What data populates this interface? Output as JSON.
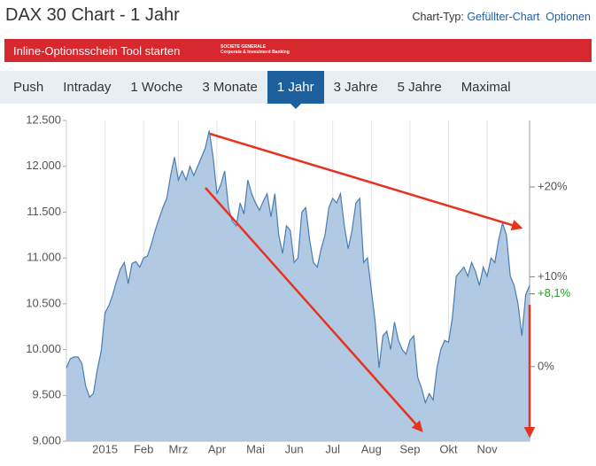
{
  "header": {
    "title": "DAX 30 Chart - 1 Jahr",
    "chart_type_label": "Chart-Typ:",
    "chart_type": "Gefüllter-Chart",
    "options": "Optionen"
  },
  "banner": {
    "text": "Inline-Optionsschein Tool starten",
    "logo_line1": "SOCIETE GENERALE",
    "logo_line2": "Corporate & Investment Banking"
  },
  "tabs": {
    "items": [
      "Push",
      "Intraday",
      "1 Woche",
      "3 Monate",
      "1 Jahr",
      "3 Jahre",
      "5 Jahre",
      "Maximal"
    ],
    "active": 4
  },
  "chart_data": {
    "type": "area",
    "categories": [
      null,
      null,
      null,
      null,
      null,
      null,
      null,
      null,
      null,
      null,
      "2015",
      null,
      null,
      null,
      null,
      null,
      null,
      null,
      null,
      null,
      "Feb",
      null,
      null,
      null,
      null,
      null,
      null,
      null,
      null,
      "Mrz",
      null,
      null,
      null,
      null,
      null,
      null,
      null,
      null,
      null,
      "Apr",
      null,
      null,
      null,
      null,
      null,
      null,
      null,
      null,
      null,
      "Mai",
      null,
      null,
      null,
      null,
      null,
      null,
      null,
      null,
      null,
      "Jun",
      null,
      null,
      null,
      null,
      null,
      null,
      null,
      null,
      null,
      "Jul",
      null,
      null,
      null,
      null,
      null,
      null,
      null,
      null,
      null,
      "Aug",
      null,
      null,
      null,
      null,
      null,
      null,
      null,
      null,
      null,
      "Sep",
      null,
      null,
      null,
      null,
      null,
      null,
      null,
      null,
      null,
      "Okt",
      null,
      null,
      null,
      null,
      null,
      null,
      null,
      null,
      null,
      "Nov",
      null,
      null,
      null,
      null,
      null,
      null,
      null,
      null,
      null,
      null,
      null
    ],
    "series": [
      {
        "name": "DAX 30",
        "color": "#4a7db3",
        "fill": "#a8c3df",
        "values": [
          9800,
          9900,
          9920,
          9920,
          9850,
          9600,
          9480,
          9520,
          9780,
          9980,
          10400,
          10480,
          10600,
          10750,
          10880,
          10950,
          10720,
          10940,
          10960,
          10900,
          11000,
          11020,
          11150,
          11300,
          11430,
          11550,
          11650,
          11900,
          12100,
          11850,
          11950,
          11850,
          12000,
          11900,
          12000,
          12100,
          12200,
          12390,
          12100,
          11700,
          11800,
          11950,
          11550,
          11400,
          11350,
          11600,
          11480,
          11850,
          11700,
          11600,
          11520,
          11620,
          11700,
          11450,
          11700,
          11250,
          11050,
          11350,
          11300,
          10950,
          11000,
          11500,
          11550,
          11200,
          10950,
          10900,
          11100,
          11250,
          11550,
          11650,
          11600,
          11700,
          11350,
          11100,
          11300,
          11600,
          11650,
          10950,
          11000,
          10650,
          10300,
          9800,
          10150,
          10200,
          10000,
          10300,
          10100,
          10000,
          9950,
          10100,
          10150,
          9700,
          9580,
          9420,
          9520,
          9450,
          9800,
          10000,
          10100,
          10080,
          10350,
          10800,
          10850,
          10900,
          10800,
          10950,
          10850,
          10700,
          10900,
          10800,
          11000,
          10950,
          11200,
          11380,
          11250,
          10800,
          10700,
          10500,
          10150,
          10600,
          10700
        ]
      }
    ],
    "ylim": [
      9000,
      12500
    ],
    "yticks": [
      {
        "value": 9000,
        "label": "9.000"
      },
      {
        "value": 9500,
        "label": "9.500"
      },
      {
        "value": 10000,
        "label": "10.000"
      },
      {
        "value": 10500,
        "label": "10.500"
      },
      {
        "value": 11000,
        "label": "11.000"
      },
      {
        "value": 11500,
        "label": "11.500"
      },
      {
        "value": 12000,
        "label": "12.000"
      },
      {
        "value": 12500,
        "label": "12.500"
      }
    ],
    "y2lim": [
      -8.3,
      27.4
    ],
    "y2ticks": [
      {
        "value": 0,
        "label": "0%"
      },
      {
        "value": 10,
        "label": "+10%"
      },
      {
        "value": 20,
        "label": "+20%"
      }
    ],
    "current_change": {
      "value": 8.1,
      "label": "+8,1%",
      "color": "#2a9a2a"
    },
    "grid": true
  }
}
